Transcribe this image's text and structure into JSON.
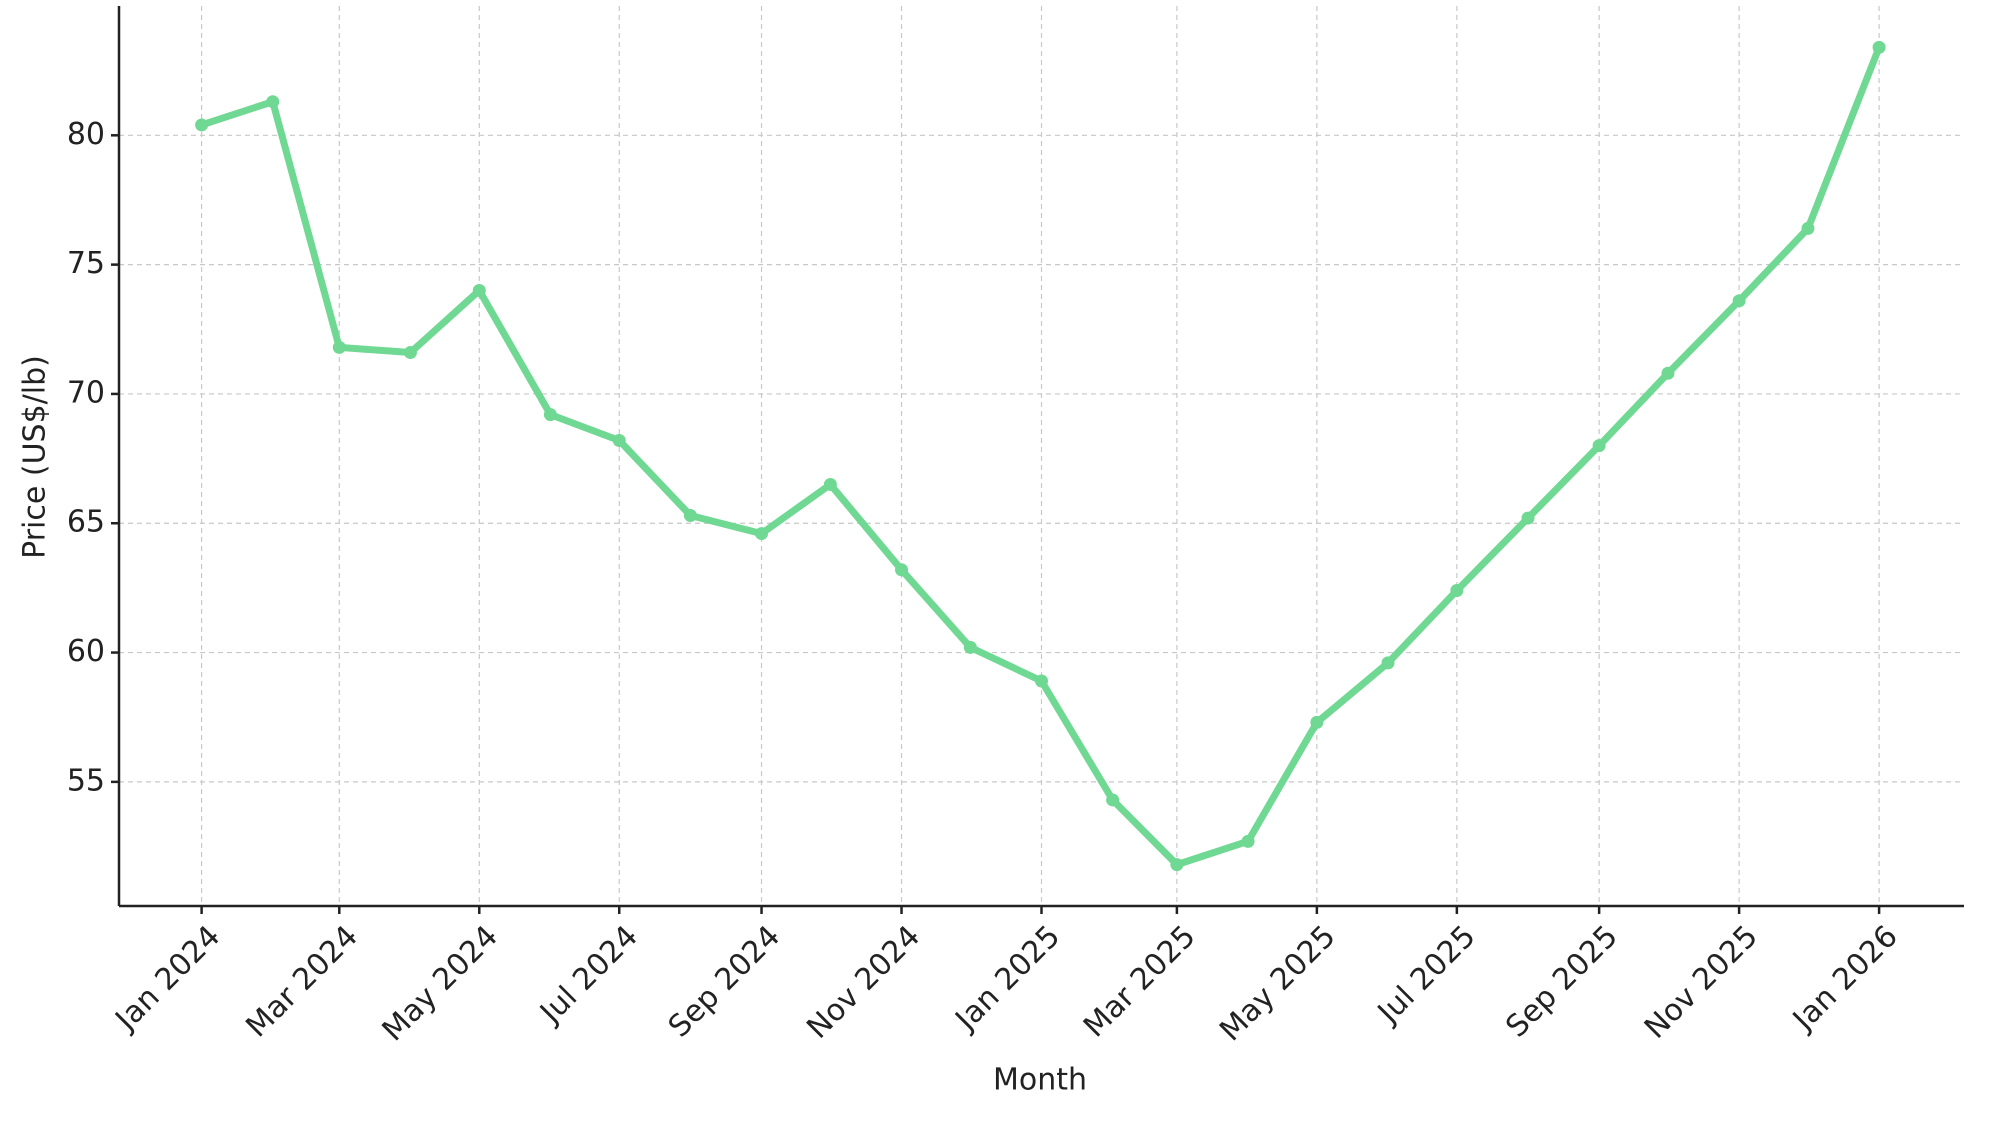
{
  "chart_data": {
    "type": "line",
    "x_label": "Month",
    "y_label": "Price (US$/lb)",
    "x": [
      "2024-01",
      "2024-02",
      "2024-03",
      "2024-04",
      "2024-05",
      "2024-06",
      "2024-07",
      "2024-08",
      "2024-09",
      "2024-10",
      "2024-11",
      "2024-12",
      "2025-01",
      "2025-02",
      "2025-03",
      "2025-04",
      "2025-05",
      "2025-06",
      "2025-07",
      "2025-08",
      "2025-09",
      "2025-10",
      "2025-11",
      "2025-12",
      "2026-01"
    ],
    "series": [
      {
        "name": "Price",
        "color": "#6fd892",
        "values": [
          80.4,
          81.3,
          71.8,
          71.6,
          74.0,
          69.2,
          68.2,
          65.3,
          64.6,
          66.5,
          63.2,
          60.2,
          58.9,
          54.3,
          51.8,
          52.7,
          57.3,
          59.6,
          62.4,
          65.2,
          68.0,
          70.8,
          73.6,
          76.4,
          83.4
        ]
      }
    ],
    "xlim": [
      "2023-11-26",
      "2026-02-07"
    ],
    "xticks": [
      {
        "value": "2024-01",
        "label": "Jan 2024"
      },
      {
        "value": "2024-03",
        "label": "Mar 2024"
      },
      {
        "value": "2024-05",
        "label": "May 2024"
      },
      {
        "value": "2024-07",
        "label": "Jul 2024"
      },
      {
        "value": "2024-09",
        "label": "Sep 2024"
      },
      {
        "value": "2024-11",
        "label": "Nov 2024"
      },
      {
        "value": "2025-01",
        "label": "Jan 2025"
      },
      {
        "value": "2025-03",
        "label": "Mar 2025"
      },
      {
        "value": "2025-05",
        "label": "May 2025"
      },
      {
        "value": "2025-07",
        "label": "Jul 2025"
      },
      {
        "value": "2025-09",
        "label": "Sep 2025"
      },
      {
        "value": "2025-11",
        "label": "Nov 2025"
      },
      {
        "value": "2026-01",
        "label": "Jan 2026"
      }
    ],
    "ylim": [
      50.2,
      85
    ],
    "yticks": [
      55,
      60,
      65,
      70,
      75,
      80
    ],
    "grid": true
  }
}
